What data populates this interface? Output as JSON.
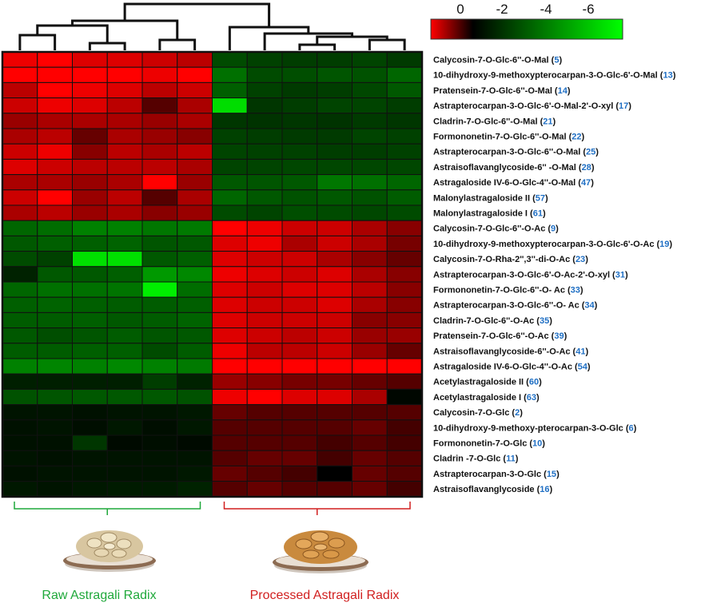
{
  "chart_data": {
    "type": "heatmap",
    "color_scale": {
      "tick_labels": [
        "0",
        "-2",
        "-4",
        "-6"
      ],
      "min": -7.5,
      "max": 1.5,
      "colors": [
        "#00ff00",
        "#000000",
        "#ff0000"
      ]
    },
    "rows": [
      {
        "name": "Calycosin-7-O-Glc-6''-O-Mal",
        "id": "5",
        "values": [
          1.4,
          1.5,
          1.3,
          1.3,
          1.2,
          1.1,
          -2.2,
          -1.9,
          -1.8,
          -1.8,
          -2.0,
          -1.7
        ]
      },
      {
        "name": "10-dihydroxy-9-methoxypterocarpan-3-O-Glc-6'-O-Mal",
        "id": "13",
        "values": [
          1.6,
          1.7,
          1.6,
          1.5,
          1.4,
          1.5,
          -3.3,
          -2.2,
          -2.3,
          -2.5,
          -2.4,
          -3.0
        ]
      },
      {
        "name": "Pratensein-7-O-Glc-6''-O-Mal",
        "id": "14",
        "values": [
          1.1,
          1.5,
          1.4,
          1.3,
          1.1,
          1.2,
          -2.8,
          -1.9,
          -1.7,
          -1.8,
          -2.1,
          -2.6
        ]
      },
      {
        "name": "Astrapterocarpan-3-O-Glc-6'-O-Mal-2'-O-xyl",
        "id": "17",
        "values": [
          1.2,
          1.4,
          1.3,
          1.1,
          0.5,
          1.0,
          -6.5,
          -1.6,
          -1.8,
          -2.0,
          -2.0,
          -1.8
        ]
      },
      {
        "name": "Cladrin-7-O-Glc-6''-O-Mal",
        "id": "21",
        "values": [
          0.9,
          1.0,
          1.0,
          1.0,
          0.9,
          1.0,
          -1.6,
          -1.5,
          -1.6,
          -1.5,
          -1.7,
          -1.6
        ]
      },
      {
        "name": "Formononetin-7-O-Glc-6''-O-Mal",
        "id": "22",
        "values": [
          1.0,
          1.1,
          0.6,
          1.0,
          0.9,
          0.8,
          -1.9,
          -1.8,
          -1.7,
          -1.7,
          -2.0,
          -1.9
        ]
      },
      {
        "name": "Astrapterocarpan-3-O-Glc-6''-O-Mal",
        "id": "25",
        "values": [
          1.2,
          1.4,
          0.8,
          1.1,
          1.0,
          1.1,
          -2.0,
          -1.9,
          -1.9,
          -1.8,
          -1.8,
          -1.9
        ]
      },
      {
        "name": "Astraisoflavanglycoside-6'' -O-Mal",
        "id": "28",
        "values": [
          1.3,
          1.2,
          1.1,
          1.1,
          1.1,
          1.0,
          -2.0,
          -2.0,
          -2.1,
          -2.1,
          -2.1,
          -2.1
        ]
      },
      {
        "name": "Astragaloside IV-6-O-Glc-4''-O-Mal",
        "id": "47",
        "values": [
          1.0,
          1.0,
          0.9,
          1.0,
          1.6,
          0.9,
          -2.6,
          -2.5,
          -2.6,
          -3.5,
          -3.3,
          -3.0
        ]
      },
      {
        "name": "Malonylastragaloside II",
        "id": "57",
        "values": [
          1.2,
          1.6,
          0.9,
          1.1,
          0.5,
          1.0,
          -3.0,
          -2.6,
          -2.4,
          -2.6,
          -2.4,
          -2.7
        ]
      },
      {
        "name": "Malonylastragaloside I",
        "id": "61",
        "values": [
          1.0,
          1.1,
          0.9,
          1.0,
          0.8,
          0.9,
          -2.2,
          -2.0,
          -2.3,
          -2.2,
          -2.1,
          -2.2
        ]
      },
      {
        "name": "Calycosin-7-O-Glc-6''-O-Ac",
        "id": "9",
        "values": [
          -3.0,
          -3.2,
          -3.8,
          -3.8,
          -3.5,
          -3.6,
          1.5,
          1.4,
          1.2,
          1.2,
          1.0,
          0.8
        ]
      },
      {
        "name": "10-dihydroxy-9-methoxypterocarpan-3-O-Glc-6'-O-Ac",
        "id": "19",
        "values": [
          -2.6,
          -2.8,
          -2.8,
          -2.9,
          -2.5,
          -2.6,
          1.3,
          1.4,
          1.0,
          1.2,
          1.0,
          0.7
        ]
      },
      {
        "name": "Calycosin-7-O-Rha-2'',3''-di-O-Ac",
        "id": "23",
        "values": [
          -2.2,
          -1.9,
          -6.6,
          -6.6,
          -2.6,
          -2.8,
          1.3,
          1.2,
          1.2,
          1.0,
          0.8,
          0.6
        ]
      },
      {
        "name": "Astrapterocarpan-3-O-Glc-6'-O-Ac-2'-O-xyl",
        "id": "31",
        "values": [
          -1.0,
          -2.6,
          -2.6,
          -2.8,
          -4.5,
          -4.0,
          1.4,
          1.3,
          1.2,
          1.3,
          1.0,
          0.8
        ]
      },
      {
        "name": "Formononetin-7-O-Glc-6''-O- Ac",
        "id": "33",
        "values": [
          -3.0,
          -3.3,
          -3.3,
          -3.4,
          -7.0,
          -3.2,
          1.3,
          1.2,
          1.3,
          1.3,
          1.1,
          0.8
        ]
      },
      {
        "name": "Astrapterocarpan-3-O-Glc-6''-O- Ac",
        "id": "34",
        "values": [
          -2.8,
          -2.9,
          -2.8,
          -2.7,
          -2.7,
          -2.8,
          1.3,
          1.2,
          1.2,
          1.3,
          1.0,
          0.8
        ]
      },
      {
        "name": "Cladrin-7-O-Glc-6''-O-Ac",
        "id": "35",
        "values": [
          -2.7,
          -2.7,
          -2.8,
          -2.6,
          -2.7,
          -2.9,
          1.3,
          1.2,
          1.2,
          1.2,
          0.8,
          0.8
        ]
      },
      {
        "name": "Pratensein-7-O-Glc-6''-O-Ac",
        "id": "39",
        "values": [
          -2.6,
          -2.3,
          -2.5,
          -2.7,
          -2.5,
          -2.6,
          1.3,
          1.2,
          1.1,
          1.2,
          0.9,
          0.9
        ]
      },
      {
        "name": "Astraisoflavanglycoside-6''-O-Ac",
        "id": "41",
        "values": [
          -2.7,
          -2.7,
          -2.8,
          -2.8,
          -2.2,
          -2.7,
          1.4,
          1.1,
          1.1,
          1.2,
          0.9,
          0.6
        ]
      },
      {
        "name": "Astragaloside IV-6-O-Glc-4''-O-Ac",
        "id": "54",
        "values": [
          -3.8,
          -3.9,
          -3.8,
          -4.0,
          -3.8,
          -3.6,
          1.5,
          1.5,
          1.5,
          1.5,
          1.5,
          1.5
        ]
      },
      {
        "name": "Acetylastragaloside II",
        "id": "60",
        "values": [
          -0.9,
          -0.9,
          -0.9,
          -0.9,
          -1.8,
          -1.0,
          0.9,
          0.8,
          0.7,
          0.7,
          0.6,
          0.5
        ]
      },
      {
        "name": "Acetylastragaloside I",
        "id": "63",
        "values": [
          -2.4,
          -2.5,
          -2.6,
          -2.6,
          -2.6,
          -2.4,
          1.4,
          1.5,
          1.3,
          1.3,
          1.0,
          -0.2
        ]
      },
      {
        "name": "Calycosin-7-O-Glc",
        "id": "2",
        "values": [
          -0.6,
          -0.6,
          -0.5,
          -0.6,
          -0.6,
          -0.7,
          0.6,
          0.5,
          0.5,
          0.5,
          0.5,
          0.5
        ]
      },
      {
        "name": "10-dihydroxy-9-methoxy-pterocarpan-3-O-Glc",
        "id": "6",
        "values": [
          -0.5,
          -0.6,
          -0.4,
          -0.7,
          -0.4,
          -0.7,
          0.5,
          0.5,
          0.5,
          0.5,
          0.6,
          0.4
        ]
      },
      {
        "name": "Formononetin-7-O-Glc",
        "id": "10",
        "values": [
          -0.5,
          -0.5,
          -1.6,
          -0.3,
          -0.4,
          -0.3,
          0.5,
          0.5,
          0.5,
          0.4,
          0.5,
          0.4
        ]
      },
      {
        "name": "Cladrin -7-O-Glc",
        "id": "11",
        "values": [
          -0.6,
          -0.5,
          -0.6,
          -0.6,
          -0.6,
          -0.6,
          0.5,
          0.6,
          0.6,
          0.4,
          0.6,
          0.5
        ]
      },
      {
        "name": "Astrapterocarpan-3-O-Glc",
        "id": "15",
        "values": [
          -0.5,
          -0.6,
          -0.6,
          -0.6,
          -0.6,
          -0.7,
          0.6,
          0.5,
          0.4,
          0.0,
          0.6,
          0.5
        ]
      },
      {
        "name": "Astraisoflavanglycoside",
        "id": "16",
        "values": [
          -0.7,
          -0.6,
          -0.7,
          -0.8,
          -0.8,
          -1.0,
          0.5,
          0.6,
          0.5,
          0.5,
          0.6,
          0.4
        ]
      }
    ],
    "groups": [
      {
        "label": "Raw Astragali Radix",
        "color": "#1fa83a"
      },
      {
        "label": "Processed Astragali Radix",
        "color": "#d11f1f"
      }
    ],
    "legend_position": "top-right"
  }
}
